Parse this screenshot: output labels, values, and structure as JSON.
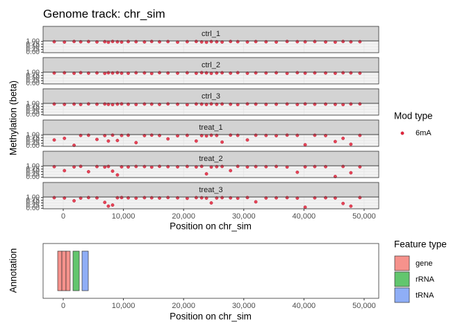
{
  "chart_data": [
    {
      "type": "facet-scatter",
      "title": "Genome track: chr_sim",
      "xlabel": "Position on chr_sim",
      "ylabel": "Methylation (beta)",
      "xlim": [
        -3350,
        52430
      ],
      "ylim": [
        -0.05,
        1.05
      ],
      "xticks": [
        0,
        {
          "value": 10000,
          "label": "10,000"
        },
        {
          "value": 20000,
          "label": "20,000"
        },
        {
          "value": 30000,
          "label": "30,000"
        },
        {
          "value": 40000,
          "label": "40,000"
        },
        {
          "value": 50000,
          "label": "50,000"
        }
      ],
      "yticks": [
        {
          "value": 0,
          "label": "0.00"
        },
        {
          "value": 0.25,
          "label": "0.25"
        },
        {
          "value": 0.5,
          "label": "0.50"
        },
        {
          "value": 0.75,
          "label": "0.75"
        },
        {
          "value": 1,
          "label": "1.00"
        }
      ],
      "legend_title": "Mod type",
      "legend_label": "6mA",
      "color": "#e3263c",
      "x": [
        -1500,
        200,
        1800,
        2900,
        4200,
        5600,
        6900,
        7500,
        8200,
        9000,
        9700,
        10800,
        12100,
        13500,
        14700,
        16000,
        17400,
        19000,
        20600,
        22100,
        23000,
        23800,
        24600,
        25500,
        26400,
        27800,
        29000,
        30600,
        32000,
        33700,
        35400,
        37200,
        38900,
        40200,
        41800,
        43600,
        45200,
        46500,
        47800,
        49300
      ],
      "facets": [
        {
          "name": "ctrl_1",
          "values": [
            0.98,
            0.95,
            1.0,
            0.97,
            0.99,
            0.96,
            0.98,
            0.93,
            1.0,
            0.97,
            0.95,
            0.99,
            0.98,
            0.96,
            1.0,
            0.97,
            0.99,
            0.94,
            0.98,
            1.0,
            0.96,
            0.93,
            0.99,
            0.97,
            0.95,
            1.0,
            0.98,
            0.96,
            0.99,
            0.97,
            0.95,
            1.0,
            0.98,
            0.97,
            0.99,
            0.96,
            0.94,
            1.0,
            0.97,
            0.98
          ]
        },
        {
          "name": "ctrl_2",
          "values": [
            0.97,
            0.99,
            0.95,
            1.0,
            0.96,
            0.98,
            0.94,
            0.99,
            0.97,
            1.0,
            0.96,
            0.95,
            0.99,
            0.98,
            0.93,
            1.0,
            0.97,
            0.96,
            0.99,
            0.95,
            1.0,
            0.98,
            0.94,
            0.97,
            0.99,
            0.96,
            1.0,
            0.95,
            0.98,
            0.97,
            0.99,
            0.94,
            1.0,
            0.96,
            0.98,
            0.97,
            0.95,
            0.99,
            0.98,
            0.96
          ]
        },
        {
          "name": "ctrl_3",
          "values": [
            0.99,
            0.96,
            0.98,
            0.95,
            1.0,
            0.97,
            0.99,
            0.96,
            0.94,
            0.98,
            1.0,
            0.97,
            0.95,
            0.99,
            0.98,
            0.96,
            1.0,
            0.97,
            0.93,
            0.99,
            0.98,
            0.95,
            1.0,
            0.96,
            0.99,
            0.97,
            0.94,
            1.0,
            0.98,
            0.96,
            0.97,
            0.99,
            0.95,
            1.0,
            0.97,
            0.98,
            0.96,
            0.94,
            0.99,
            1.0
          ]
        },
        {
          "name": "treat_1",
          "values": [
            0.55,
            0.7,
            0.05,
            0.97,
            0.99,
            0.6,
            0.96,
            0.45,
            1.0,
            0.5,
            0.97,
            0.99,
            0.3,
            0.96,
            1.0,
            0.97,
            0.65,
            0.94,
            0.98,
            0.45,
            0.96,
            0.93,
            0.99,
            0.97,
            0.35,
            1.0,
            0.98,
            0.55,
            0.99,
            0.97,
            0.95,
            1.0,
            0.98,
            0.1,
            0.99,
            0.96,
            0.4,
            0.7,
            0.15,
            0.98
          ]
        },
        {
          "name": "treat_2",
          "values": [
            0.97,
            0.6,
            0.95,
            1.0,
            0.5,
            0.98,
            0.94,
            0.99,
            0.55,
            0.2,
            0.96,
            0.95,
            0.99,
            0.98,
            0.93,
            1.0,
            0.97,
            0.96,
            0.99,
            0.95,
            1.0,
            0.3,
            0.94,
            0.97,
            0.99,
            0.6,
            1.0,
            0.95,
            0.98,
            0.97,
            0.99,
            0.94,
            0.45,
            0.96,
            0.98,
            0.97,
            0.05,
            0.99,
            0.4,
            0.96
          ]
        },
        {
          "name": "treat_3",
          "values": [
            0.99,
            0.96,
            0.7,
            0.95,
            1.0,
            0.97,
            0.55,
            0.2,
            0.3,
            0.98,
            1.0,
            0.97,
            0.95,
            0.99,
            0.98,
            0.96,
            1.0,
            0.97,
            0.93,
            0.99,
            0.98,
            0.95,
            0.5,
            0.96,
            0.99,
            0.97,
            0.94,
            1.0,
            0.6,
            0.96,
            0.97,
            0.99,
            0.95,
            0.1,
            0.97,
            0.98,
            0.96,
            0.45,
            0.2,
            1.0
          ]
        }
      ]
    },
    {
      "type": "feature",
      "xlabel": "Position on chr_sim",
      "ylabel": "Annotation",
      "legend_title": "Feature type",
      "xlim": [
        -3350,
        52430
      ],
      "xticks": [
        0,
        {
          "value": 10000,
          "label": "10,000"
        },
        {
          "value": 20000,
          "label": "20,000"
        },
        {
          "value": 30000,
          "label": "30,000"
        },
        {
          "value": 40000,
          "label": "40,000"
        },
        {
          "value": 50000,
          "label": "50,000"
        }
      ],
      "series": [
        {
          "name": "gene",
          "color": "#f6928c",
          "starts": [
            -920,
            -230,
            460
          ],
          "ends": [
            -230,
            460,
            1150
          ]
        },
        {
          "name": "rRNA",
          "color": "#62c66e",
          "starts": [
            1620
          ],
          "ends": [
            2660
          ]
        },
        {
          "name": "tRNA",
          "color": "#8faef6",
          "starts": [
            3120
          ],
          "ends": [
            4160
          ]
        }
      ]
    }
  ]
}
